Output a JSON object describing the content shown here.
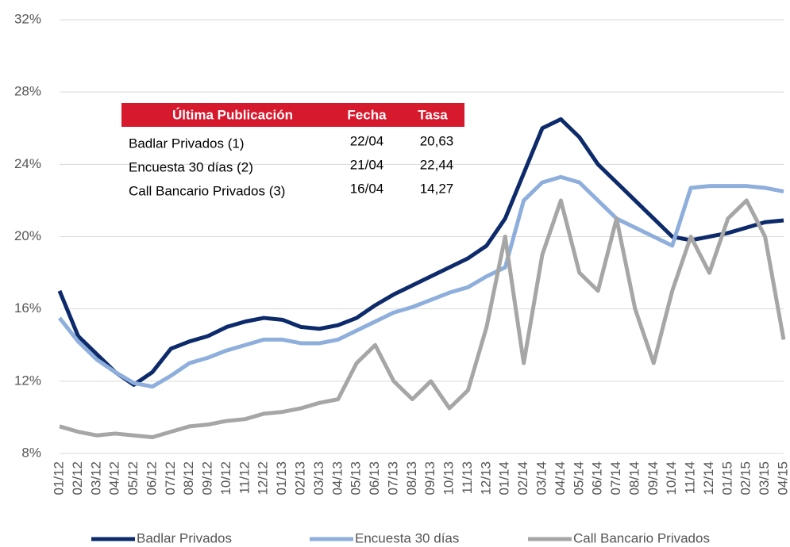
{
  "chart_data": {
    "type": "line",
    "categories": [
      "01/12",
      "02/12",
      "03/12",
      "04/12",
      "05/12",
      "06/12",
      "07/12",
      "08/12",
      "09/12",
      "10/12",
      "11/12",
      "12/12",
      "01/13",
      "02/13",
      "03/13",
      "04/13",
      "05/13",
      "06/13",
      "07/13",
      "08/13",
      "09/13",
      "10/13",
      "11/13",
      "12/13",
      "01/14",
      "02/14",
      "03/14",
      "04/14",
      "05/14",
      "06/14",
      "07/14",
      "08/14",
      "09/14",
      "10/14",
      "11/14",
      "12/14",
      "01/15",
      "02/15",
      "03/15",
      "04/15"
    ],
    "series": [
      {
        "name": "Badlar Privados",
        "color": "#0d2a6b",
        "values": [
          17,
          14.5,
          13.5,
          12.5,
          11.8,
          12.5,
          13.8,
          14.2,
          14.5,
          15,
          15.3,
          15.5,
          15.4,
          15,
          14.9,
          15.1,
          15.5,
          16.2,
          16.8,
          17.3,
          17.8,
          18.3,
          18.8,
          19.5,
          21,
          23.5,
          26,
          26.5,
          25.5,
          24,
          23,
          22,
          21,
          20,
          19.8,
          20,
          20.2,
          20.5,
          20.8,
          20.9
        ]
      },
      {
        "name": "Encuesta 30 días",
        "color": "#8eaedc",
        "values": [
          15.5,
          14.2,
          13.2,
          12.5,
          11.9,
          11.7,
          12.3,
          13,
          13.3,
          13.7,
          14,
          14.3,
          14.3,
          14.1,
          14.1,
          14.3,
          14.8,
          15.3,
          15.8,
          16.1,
          16.5,
          16.9,
          17.2,
          17.8,
          18.3,
          22,
          23,
          23.3,
          23,
          22,
          21,
          20.5,
          20,
          19.5,
          22.7,
          22.8,
          22.8,
          22.8,
          22.7,
          22.5
        ]
      },
      {
        "name": "Call Bancario Privados",
        "color": "#a6a6a6",
        "values": [
          9.5,
          9.2,
          9,
          9.1,
          9,
          8.9,
          9.2,
          9.5,
          9.6,
          9.8,
          9.9,
          10.2,
          10.3,
          10.5,
          10.8,
          11,
          13,
          14,
          12,
          11,
          12,
          10.5,
          11.5,
          15,
          20,
          13,
          19,
          22,
          18,
          17,
          21,
          16,
          13,
          17,
          20,
          18,
          21,
          22,
          20,
          14.3
        ]
      }
    ],
    "ylim": [
      8,
      32
    ],
    "yticks": [
      {
        "value": 8,
        "label": "8%"
      },
      {
        "value": 12,
        "label": "12%"
      },
      {
        "value": 16,
        "label": "16%"
      },
      {
        "value": 20,
        "label": "20%"
      },
      {
        "value": 24,
        "label": "24%"
      },
      {
        "value": 28,
        "label": "28%"
      },
      {
        "value": 32,
        "label": "32%"
      }
    ],
    "grid": true,
    "table": {
      "header": [
        "Última Publicación",
        "Fecha",
        "Tasa"
      ],
      "rows": [
        [
          "Badlar Privados (1)",
          "22/04",
          "20,63"
        ],
        [
          "Encuesta 30 días (2)",
          "21/04",
          "22,44"
        ],
        [
          "Call Bancario Privados (3)",
          "16/04",
          "14,27"
        ]
      ]
    }
  }
}
